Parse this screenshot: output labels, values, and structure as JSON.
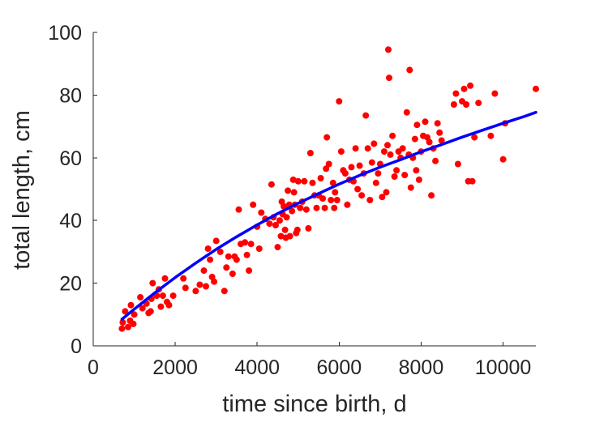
{
  "chart_data": {
    "type": "scatter",
    "xlabel": "time since birth, d",
    "ylabel": "total length, cm",
    "xlim": [
      0,
      10800
    ],
    "ylim": [
      0,
      100
    ],
    "xticks": [
      0,
      2000,
      4000,
      6000,
      8000,
      10000
    ],
    "yticks": [
      0,
      20,
      40,
      60,
      80,
      100
    ],
    "xtick_labels": [
      "0",
      "2000",
      "4000",
      "6000",
      "8000",
      "10000"
    ],
    "ytick_labels": [
      "0",
      "20",
      "40",
      "60",
      "80",
      "100"
    ],
    "grid": false,
    "legend": "none",
    "colors": {
      "points": "#ff0000",
      "fit": "#0000ff",
      "axes": "#262626"
    },
    "series": [
      {
        "kind": "points",
        "points": [
          [
            700,
            5.5
          ],
          [
            720,
            7.5
          ],
          [
            780,
            11
          ],
          [
            850,
            6
          ],
          [
            900,
            8
          ],
          [
            920,
            13
          ],
          [
            980,
            7
          ],
          [
            1000,
            10
          ],
          [
            1150,
            15.5
          ],
          [
            1200,
            12
          ],
          [
            1300,
            13.5
          ],
          [
            1350,
            10.5
          ],
          [
            1400,
            11
          ],
          [
            1420,
            15
          ],
          [
            1450,
            20
          ],
          [
            1550,
            16
          ],
          [
            1600,
            18
          ],
          [
            1650,
            12.5
          ],
          [
            1700,
            16
          ],
          [
            1750,
            21.5
          ],
          [
            1800,
            14
          ],
          [
            1850,
            13
          ],
          [
            1950,
            16
          ],
          [
            2200,
            21.5
          ],
          [
            2250,
            18.5
          ],
          [
            2500,
            17.5
          ],
          [
            2600,
            19.5
          ],
          [
            2700,
            24
          ],
          [
            2750,
            19
          ],
          [
            2800,
            31
          ],
          [
            2850,
            27.5
          ],
          [
            2900,
            22
          ],
          [
            2950,
            20.5
          ],
          [
            3000,
            33.5
          ],
          [
            3100,
            30
          ],
          [
            3200,
            17.5
          ],
          [
            3250,
            25
          ],
          [
            3300,
            28.5
          ],
          [
            3400,
            23
          ],
          [
            3450,
            28.5
          ],
          [
            3500,
            27.5
          ],
          [
            3550,
            43.5
          ],
          [
            3600,
            32.5
          ],
          [
            3700,
            33
          ],
          [
            3750,
            29
          ],
          [
            3800,
            24
          ],
          [
            3850,
            32.5
          ],
          [
            3900,
            45
          ],
          [
            4000,
            38
          ],
          [
            4050,
            31
          ],
          [
            4100,
            42.5
          ],
          [
            4200,
            40.5
          ],
          [
            4300,
            39
          ],
          [
            4350,
            51.5
          ],
          [
            4400,
            41
          ],
          [
            4450,
            38.5
          ],
          [
            4500,
            31.5
          ],
          [
            4550,
            40
          ],
          [
            4580,
            35
          ],
          [
            4600,
            46
          ],
          [
            4620,
            42
          ],
          [
            4650,
            44.5
          ],
          [
            4680,
            37
          ],
          [
            4700,
            34.5
          ],
          [
            4720,
            41
          ],
          [
            4750,
            49.5
          ],
          [
            4780,
            45
          ],
          [
            4800,
            35
          ],
          [
            4850,
            43
          ],
          [
            4880,
            53
          ],
          [
            4900,
            49
          ],
          [
            4920,
            45
          ],
          [
            4950,
            36
          ],
          [
            4980,
            37
          ],
          [
            5000,
            52.5
          ],
          [
            5050,
            44
          ],
          [
            5100,
            46
          ],
          [
            5150,
            52.5
          ],
          [
            5200,
            43.5
          ],
          [
            5250,
            37.5
          ],
          [
            5300,
            61.5
          ],
          [
            5350,
            52
          ],
          [
            5400,
            48
          ],
          [
            5450,
            44
          ],
          [
            5500,
            48
          ],
          [
            5550,
            53.5
          ],
          [
            5600,
            47
          ],
          [
            5650,
            44
          ],
          [
            5680,
            56.5
          ],
          [
            5700,
            66.5
          ],
          [
            5750,
            58
          ],
          [
            5800,
            46.5
          ],
          [
            5850,
            52
          ],
          [
            5880,
            44
          ],
          [
            5900,
            49
          ],
          [
            5950,
            46.5
          ],
          [
            6000,
            78
          ],
          [
            6050,
            62
          ],
          [
            6100,
            56
          ],
          [
            6150,
            55
          ],
          [
            6200,
            45
          ],
          [
            6250,
            53
          ],
          [
            6300,
            57
          ],
          [
            6350,
            52.5
          ],
          [
            6400,
            63
          ],
          [
            6450,
            50
          ],
          [
            6500,
            57.5
          ],
          [
            6550,
            48
          ],
          [
            6600,
            55
          ],
          [
            6650,
            73.5
          ],
          [
            6700,
            63
          ],
          [
            6750,
            46.5
          ],
          [
            6800,
            58.5
          ],
          [
            6850,
            64.5
          ],
          [
            6900,
            52
          ],
          [
            6950,
            55
          ],
          [
            7000,
            58
          ],
          [
            7050,
            47.5
          ],
          [
            7100,
            62
          ],
          [
            7150,
            49
          ],
          [
            7180,
            64
          ],
          [
            7200,
            94.5
          ],
          [
            7220,
            85.5
          ],
          [
            7250,
            61
          ],
          [
            7300,
            67
          ],
          [
            7350,
            54
          ],
          [
            7400,
            56
          ],
          [
            7450,
            62
          ],
          [
            7500,
            60
          ],
          [
            7550,
            63
          ],
          [
            7600,
            54.5
          ],
          [
            7650,
            74.5
          ],
          [
            7700,
            61
          ],
          [
            7720,
            88
          ],
          [
            7750,
            50.5
          ],
          [
            7800,
            60
          ],
          [
            7850,
            66
          ],
          [
            7880,
            56
          ],
          [
            7900,
            70.5
          ],
          [
            7950,
            53
          ],
          [
            8000,
            62
          ],
          [
            8050,
            67
          ],
          [
            8100,
            71.5
          ],
          [
            8150,
            66.5
          ],
          [
            8200,
            65
          ],
          [
            8250,
            48
          ],
          [
            8300,
            63
          ],
          [
            8350,
            59
          ],
          [
            8400,
            71
          ],
          [
            8450,
            68
          ],
          [
            8500,
            65.5
          ],
          [
            8800,
            77
          ],
          [
            8850,
            80.5
          ],
          [
            8900,
            58
          ],
          [
            9000,
            78
          ],
          [
            9050,
            82
          ],
          [
            9100,
            77
          ],
          [
            9150,
            52.5
          ],
          [
            9200,
            83
          ],
          [
            9250,
            52.5
          ],
          [
            9300,
            66.5
          ],
          [
            9400,
            77.5
          ],
          [
            9700,
            67
          ],
          [
            9800,
            80.5
          ],
          [
            10000,
            59.5
          ],
          [
            10050,
            71
          ],
          [
            10800,
            82
          ]
        ]
      },
      {
        "kind": "fit-curve",
        "points": [
          [
            700,
            8.5
          ],
          [
            1000,
            11.7
          ],
          [
            1500,
            16.9
          ],
          [
            2000,
            21.8
          ],
          [
            2500,
            26.4
          ],
          [
            3000,
            30.8
          ],
          [
            3500,
            34.8
          ],
          [
            4000,
            38.6
          ],
          [
            4500,
            42.2
          ],
          [
            5000,
            45.5
          ],
          [
            5500,
            48.6
          ],
          [
            6000,
            51.6
          ],
          [
            6500,
            54.4
          ],
          [
            7000,
            57.0
          ],
          [
            7500,
            59.4
          ],
          [
            8000,
            61.9
          ],
          [
            8500,
            64.2
          ],
          [
            9000,
            66.6
          ],
          [
            9500,
            68.8
          ],
          [
            10000,
            71.0
          ],
          [
            10500,
            73.1
          ],
          [
            10800,
            74.5
          ]
        ]
      }
    ]
  }
}
